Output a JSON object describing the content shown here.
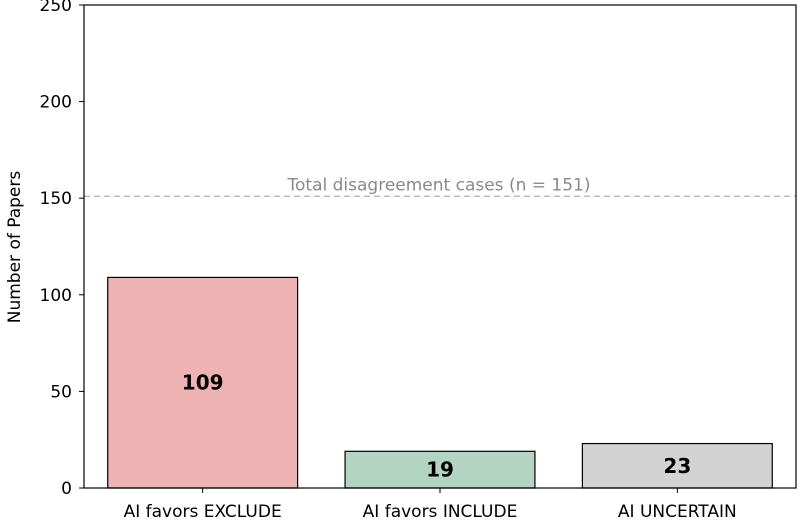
{
  "chart_data": {
    "type": "bar",
    "categories": [
      "AI favors EXCLUDE",
      "AI favors INCLUDE",
      "AI UNCERTAIN"
    ],
    "values": [
      109,
      19,
      23
    ],
    "value_labels": [
      "109",
      "19",
      "23"
    ],
    "colors": [
      "#f0b3b3",
      "#b3d4c3",
      "#d3d3d3"
    ],
    "ylabel": "Number of Papers",
    "xlabel": "",
    "ylim": [
      0,
      250
    ],
    "yticks": [
      0,
      50,
      100,
      150,
      200,
      250
    ],
    "reference_line": {
      "value": 151,
      "label": "Total disagreement cases (n = 151)",
      "style": "dashed",
      "color": "#b0b0b0"
    },
    "grid": false,
    "legend": "none"
  }
}
